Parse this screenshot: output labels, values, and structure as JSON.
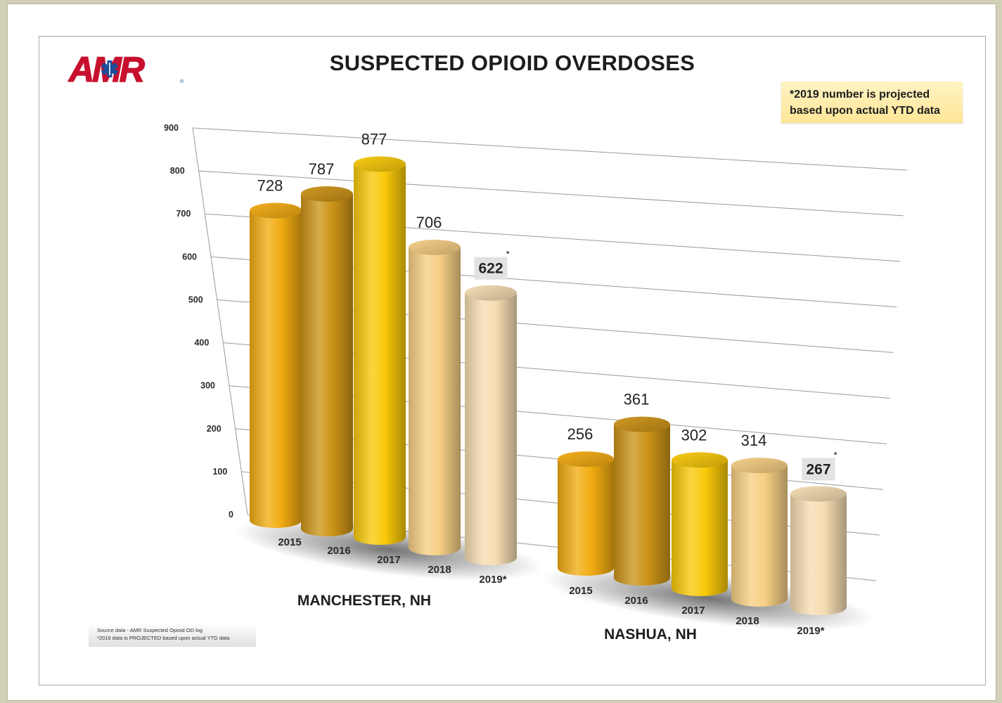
{
  "header": {
    "logo_text": "AMR",
    "title": "SUSPECTED OPIOID OVERDOSES"
  },
  "note": {
    "line1": "*2019 number is projected",
    "line2": "based upon actual YTD data"
  },
  "source_note": {
    "line1": "Source data - AMR Suspected Opioid OD log",
    "line2": "*2019 data is PROJECTED based upon actual YTD data"
  },
  "colors": {
    "background": "#d3d0b8",
    "logo_red": "#c8102e",
    "logo_blue": "#1a4d9b",
    "note_fill": "#ffe597",
    "bar_2015": "#f2ac12",
    "bar_2016": "#cc9418",
    "bar_2017": "#f9c90a",
    "bar_2018": "#f6cf84",
    "bar_2019": "#f6ddb2"
  },
  "chart_data": {
    "type": "bar",
    "style": "3d-cylinder",
    "title": "SUSPECTED OPIOID OVERDOSES",
    "ylim": [
      0,
      900
    ],
    "yticks": [
      "0",
      "100",
      "200",
      "300",
      "400",
      "500",
      "600",
      "700",
      "800",
      "900"
    ],
    "grid": true,
    "groups": [
      {
        "name": "MANCHESTER, NH",
        "categories": [
          "2015",
          "2016",
          "2017",
          "2018",
          "2019*"
        ],
        "values": [
          728,
          787,
          877,
          706,
          622
        ],
        "labels": [
          "728",
          "787",
          "877",
          "706",
          "622"
        ],
        "highlight": "*"
      },
      {
        "name": "NASHUA, NH",
        "categories": [
          "2015",
          "2016",
          "2017",
          "2018",
          "2019*"
        ],
        "values": [
          256,
          361,
          302,
          314,
          267
        ],
        "labels": [
          "256",
          "361",
          "302",
          "314",
          "267"
        ],
        "highlight": "*"
      }
    ]
  }
}
